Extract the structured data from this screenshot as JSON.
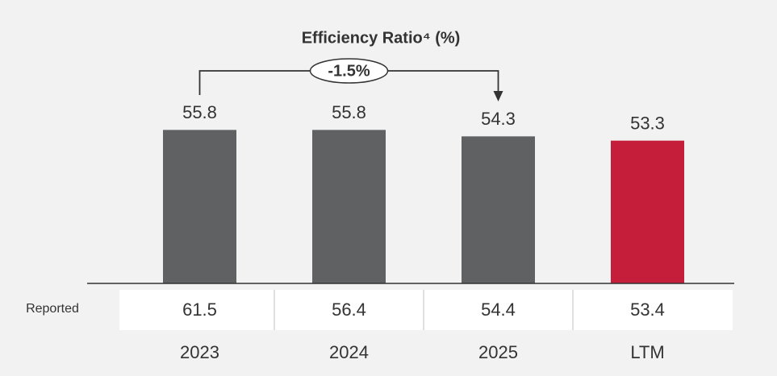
{
  "chart_data": {
    "type": "bar",
    "title": "Efficiency Ratio⁴ (%)",
    "annotation": "-1.5%",
    "categories": [
      "2023",
      "2024",
      "2025",
      "LTM"
    ],
    "values": [
      55.8,
      55.8,
      54.3,
      53.3
    ],
    "colors": [
      "#5f6163",
      "#5f6163",
      "#5f6163",
      "#c41e3a"
    ],
    "ylim": [
      20,
      60
    ],
    "reported_label": "Reported",
    "reported_values": [
      61.5,
      56.4,
      54.4,
      53.4
    ]
  }
}
